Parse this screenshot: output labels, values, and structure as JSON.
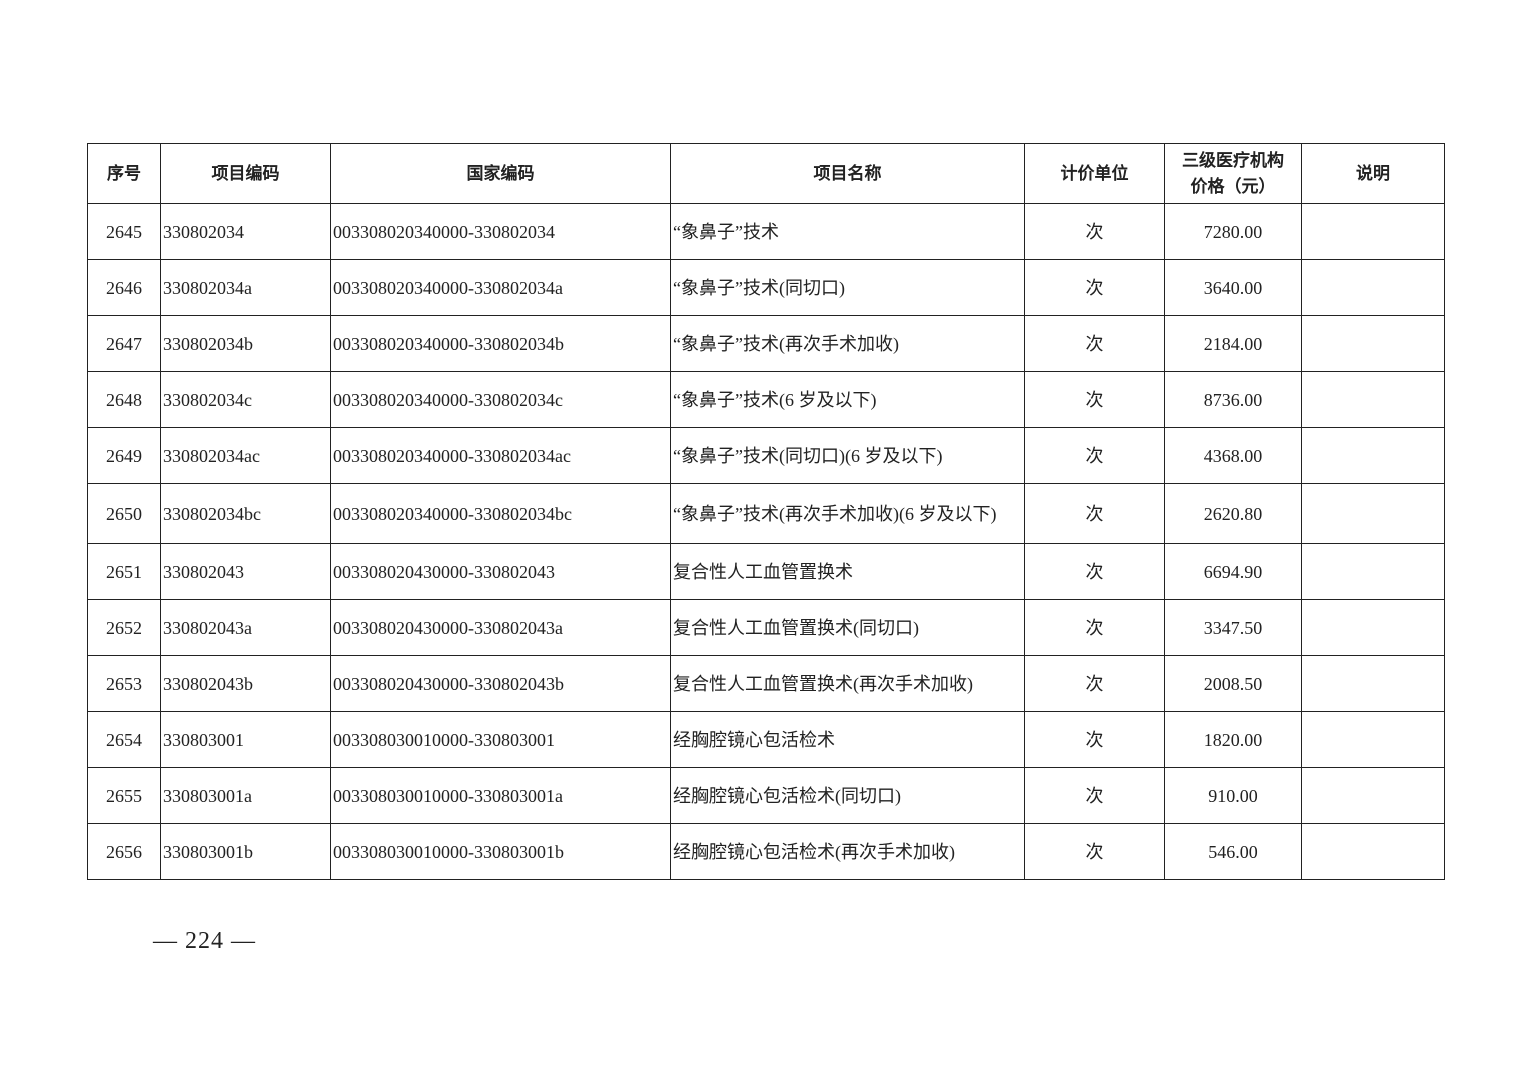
{
  "table": {
    "headers": [
      "序号",
      "项目编码",
      "国家编码",
      "项目名称",
      "计价单位",
      "三级医疗机构价格（元）",
      "说明"
    ],
    "header_price_line1": "三级医疗机构",
    "header_price_line2": "价格（元）",
    "rows": [
      {
        "no": "2645",
        "code": "330802034",
        "national": "003308020340000-330802034",
        "name": "“象鼻子”技术",
        "unit": "次",
        "price": "7280.00",
        "note": ""
      },
      {
        "no": "2646",
        "code": "330802034a",
        "national": "003308020340000-330802034a",
        "name": "“象鼻子”技术(同切口)",
        "unit": "次",
        "price": "3640.00",
        "note": ""
      },
      {
        "no": "2647",
        "code": "330802034b",
        "national": "003308020340000-330802034b",
        "name": "“象鼻子”技术(再次手术加收)",
        "unit": "次",
        "price": "2184.00",
        "note": ""
      },
      {
        "no": "2648",
        "code": "330802034c",
        "national": "003308020340000-330802034c",
        "name": "“象鼻子”技术(6 岁及以下)",
        "unit": "次",
        "price": "8736.00",
        "note": ""
      },
      {
        "no": "2649",
        "code": "330802034ac",
        "national": "003308020340000-330802034ac",
        "name": "“象鼻子”技术(同切口)(6 岁及以下)",
        "unit": "次",
        "price": "4368.00",
        "note": ""
      },
      {
        "no": "2650",
        "code": "330802034bc",
        "national": "003308020340000-330802034bc",
        "name": "“象鼻子”技术(再次手术加收)(6 岁及以下)",
        "unit": "次",
        "price": "2620.80",
        "note": ""
      },
      {
        "no": "2651",
        "code": "330802043",
        "national": "003308020430000-330802043",
        "name": "复合性人工血管置换术",
        "unit": "次",
        "price": "6694.90",
        "note": ""
      },
      {
        "no": "2652",
        "code": "330802043a",
        "national": "003308020430000-330802043a",
        "name": "复合性人工血管置换术(同切口)",
        "unit": "次",
        "price": "3347.50",
        "note": ""
      },
      {
        "no": "2653",
        "code": "330802043b",
        "national": "003308020430000-330802043b",
        "name": "复合性人工血管置换术(再次手术加收)",
        "unit": "次",
        "price": "2008.50",
        "note": ""
      },
      {
        "no": "2654",
        "code": "330803001",
        "national": "003308030010000-330803001",
        "name": "经胸腔镜心包活检术",
        "unit": "次",
        "price": "1820.00",
        "note": ""
      },
      {
        "no": "2655",
        "code": "330803001a",
        "national": "003308030010000-330803001a",
        "name": "经胸腔镜心包活检术(同切口)",
        "unit": "次",
        "price": "910.00",
        "note": ""
      },
      {
        "no": "2656",
        "code": "330803001b",
        "national": "003308030010000-330803001b",
        "name": "经胸腔镜心包活检术(再次手术加收)",
        "unit": "次",
        "price": "546.00",
        "note": ""
      }
    ]
  },
  "footer": {
    "page_number": "— 224 —"
  }
}
